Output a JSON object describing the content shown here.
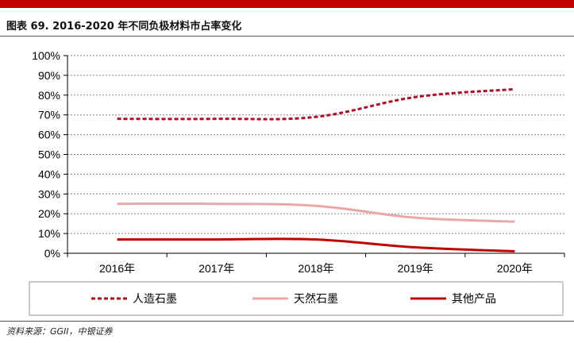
{
  "header": {
    "figure_title": "图表 69. 2016-2020 年不同负极材料市占率变化"
  },
  "footer": {
    "source": "资料来源：GGII，中银证券"
  },
  "colors": {
    "brand_bar": "#c00000",
    "artificial_graphite": "#a8102a",
    "natural_graphite": "#e8a8a8",
    "other_products": "#c00000"
  },
  "chart_data": {
    "type": "line",
    "title": "",
    "xlabel": "",
    "ylabel": "",
    "categories": [
      "2016年",
      "2017年",
      "2018年",
      "2019年",
      "2020年"
    ],
    "ylim": [
      0,
      100
    ],
    "y_ticks": [
      "0%",
      "10%",
      "20%",
      "30%",
      "40%",
      "50%",
      "60%",
      "70%",
      "80%",
      "90%",
      "100%"
    ],
    "grid": "horizontal dashed",
    "legend_position": "bottom",
    "series": [
      {
        "name": "人造石墨",
        "values": [
          68,
          68,
          69,
          79,
          83
        ],
        "style": "dashed"
      },
      {
        "name": "天然石墨",
        "values": [
          25,
          25,
          24,
          18,
          16
        ],
        "style": "solid"
      },
      {
        "name": "其他产品",
        "values": [
          7,
          7,
          7,
          3,
          1
        ],
        "style": "solid"
      }
    ]
  }
}
